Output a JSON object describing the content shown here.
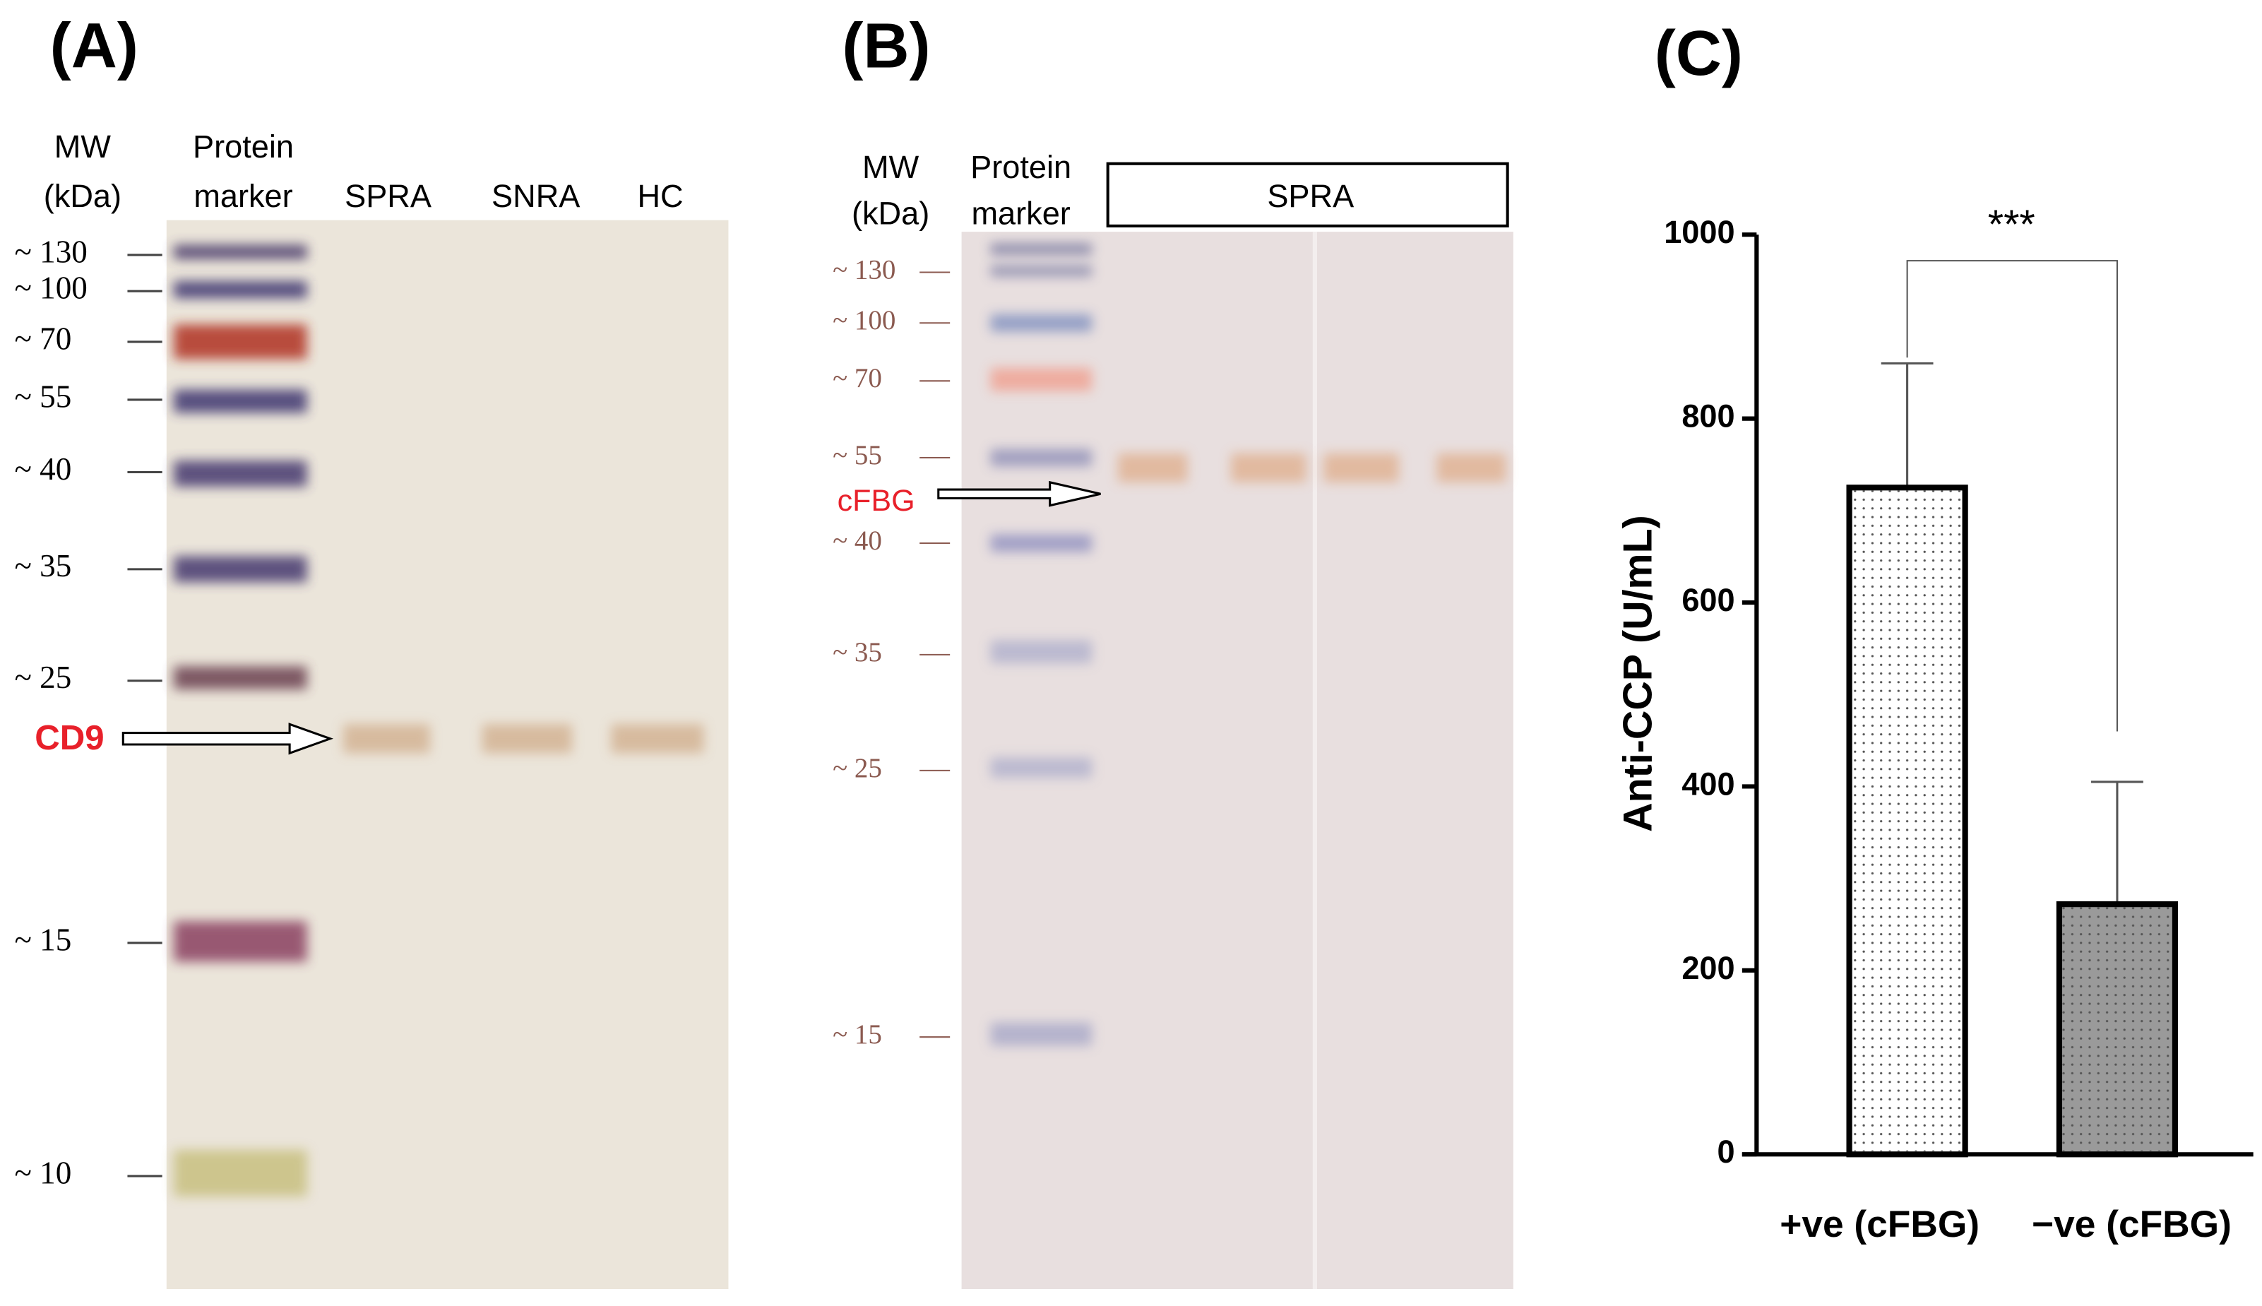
{
  "panel_a": {
    "label": "(A)",
    "mw_header": [
      "MW",
      "(kDa)"
    ],
    "lane_headers": [
      [
        "Protein",
        "marker"
      ],
      [
        "SPRA"
      ],
      [
        "SNRA"
      ],
      [
        "HC"
      ]
    ],
    "markers": [
      "~ 130",
      "~ 100",
      "~ 70",
      "~ 55",
      "~ 40",
      "~ 35",
      "~ 25",
      "~ 15",
      "~ 10"
    ],
    "arrow_label": "CD9"
  },
  "panel_b": {
    "label": "(B)",
    "mw_header": [
      "MW",
      "(kDa)"
    ],
    "lane_headers": [
      [
        "Protein",
        "marker"
      ]
    ],
    "sample_group": "SPRA",
    "markers": [
      "~ 130",
      "~ 100",
      "~ 70",
      "~ 55",
      "~ 40",
      "~ 35",
      "~ 25",
      "~ 15"
    ],
    "arrow_label": "cFBG"
  },
  "chart_data": {
    "type": "bar",
    "label": "(C)",
    "y_label": "Anti-CCP (U/mL)",
    "categories": [
      "+ve (cFBG)",
      "−ve (cFBG)"
    ],
    "values": [
      725,
      272
    ],
    "errors": [
      135,
      133
    ],
    "colors": [
      "#ffffff",
      "#9a9a9a"
    ],
    "ylim": [
      0,
      1000
    ],
    "yticks": [
      0,
      200,
      400,
      600,
      800,
      1000
    ],
    "significance": "***"
  }
}
